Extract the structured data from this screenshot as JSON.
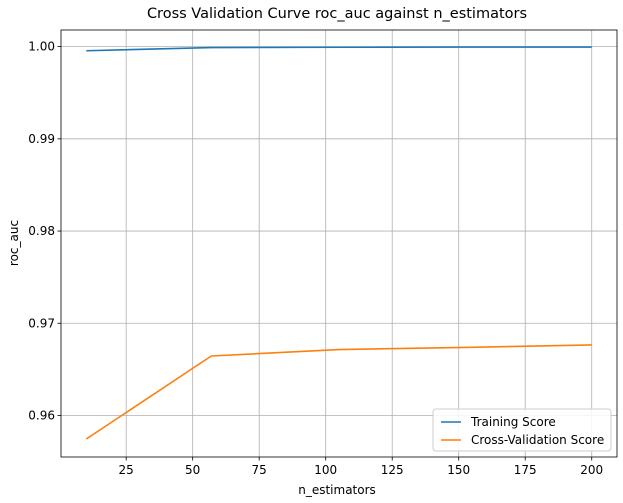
{
  "chart_data": {
    "type": "line",
    "title": "Cross Validation Curve roc_auc against n_estimators",
    "xlabel": "n_estimators",
    "ylabel": "roc_auc",
    "xlim": [
      0.5,
      209.5
    ],
    "ylim": [
      0.9555,
      1.0018
    ],
    "xticks": [
      25,
      50,
      75,
      100,
      125,
      150,
      175,
      200
    ],
    "xtick_labels": [
      "25",
      "50",
      "75",
      "100",
      "125",
      "150",
      "175",
      "200"
    ],
    "yticks": [
      0.96,
      0.97,
      0.98,
      0.99,
      1.0
    ],
    "ytick_labels": [
      "0.96",
      "0.97",
      "0.98",
      "0.99",
      "1.00"
    ],
    "grid": true,
    "legend_position": "lower-right",
    "x": [
      10,
      57,
      105,
      152,
      200
    ],
    "series": [
      {
        "name": "Training Score",
        "color": "#1f77b4",
        "values": [
          0.99955,
          0.9999,
          0.99993,
          0.99995,
          0.99995
        ]
      },
      {
        "name": "Cross-Validation Score",
        "color": "#ff7f0e",
        "values": [
          0.95745,
          0.96645,
          0.96715,
          0.96738,
          0.96765
        ]
      }
    ]
  }
}
